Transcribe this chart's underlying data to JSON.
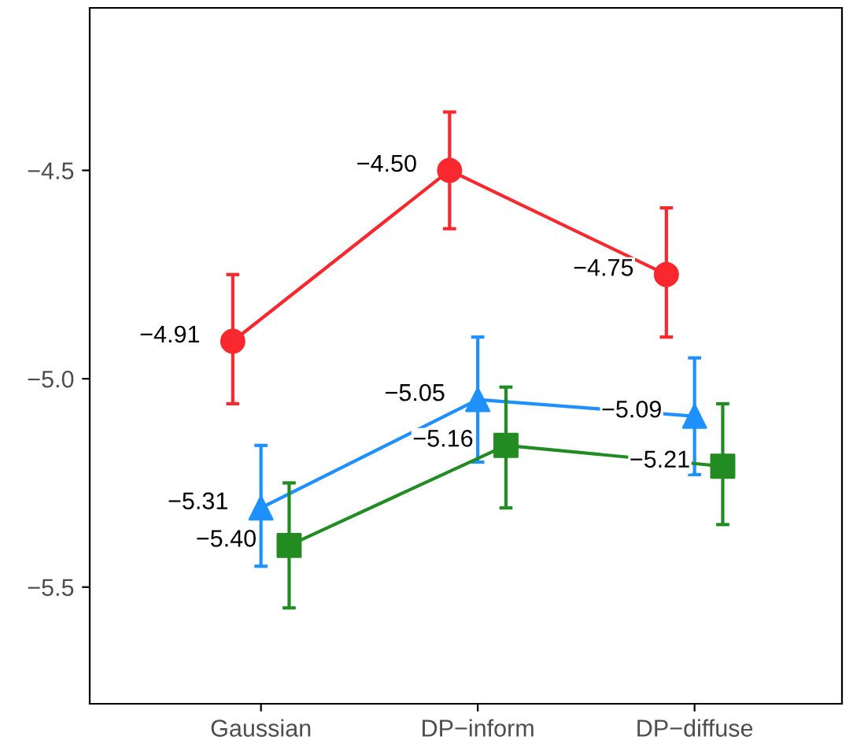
{
  "chart_data": {
    "type": "line",
    "categories": [
      "Gaussian",
      "DP−inform",
      "DP−diffuse"
    ],
    "series": [
      {
        "color": "#f8282e",
        "marker": "circle",
        "values": [
          -4.91,
          -4.5,
          -4.75
        ],
        "value_labels": [
          "−4.91",
          "−4.50",
          "−4.75"
        ],
        "errors": [
          [
            -5.06,
            -4.75
          ],
          [
            -4.64,
            -4.36
          ],
          [
            -4.9,
            -4.59
          ]
        ]
      },
      {
        "color": "#1e90ff",
        "marker": "triangle",
        "values": [
          -5.31,
          -5.05,
          -5.09
        ],
        "value_labels": [
          "−5.31",
          "−5.05",
          "−5.09"
        ],
        "errors": [
          [
            -5.45,
            -5.16
          ],
          [
            -5.2,
            -4.9
          ],
          [
            -5.23,
            -4.95
          ]
        ]
      },
      {
        "color": "#228b22",
        "marker": "square",
        "values": [
          -5.4,
          -5.16,
          -5.21
        ],
        "value_labels": [
          "−5.40",
          "−5.16",
          "−5.21"
        ],
        "errors": [
          [
            -5.55,
            -5.25
          ],
          [
            -5.31,
            -5.02
          ],
          [
            -5.35,
            -5.06
          ]
        ]
      }
    ],
    "ylim": [
      -5.78,
      -4.11
    ],
    "yticks": [
      {
        "value": -5.5,
        "label": "−5.5"
      },
      {
        "value": -5.0,
        "label": "−5.0"
      },
      {
        "value": -4.5,
        "label": "−4.5"
      }
    ],
    "grid": false,
    "legend": false
  }
}
